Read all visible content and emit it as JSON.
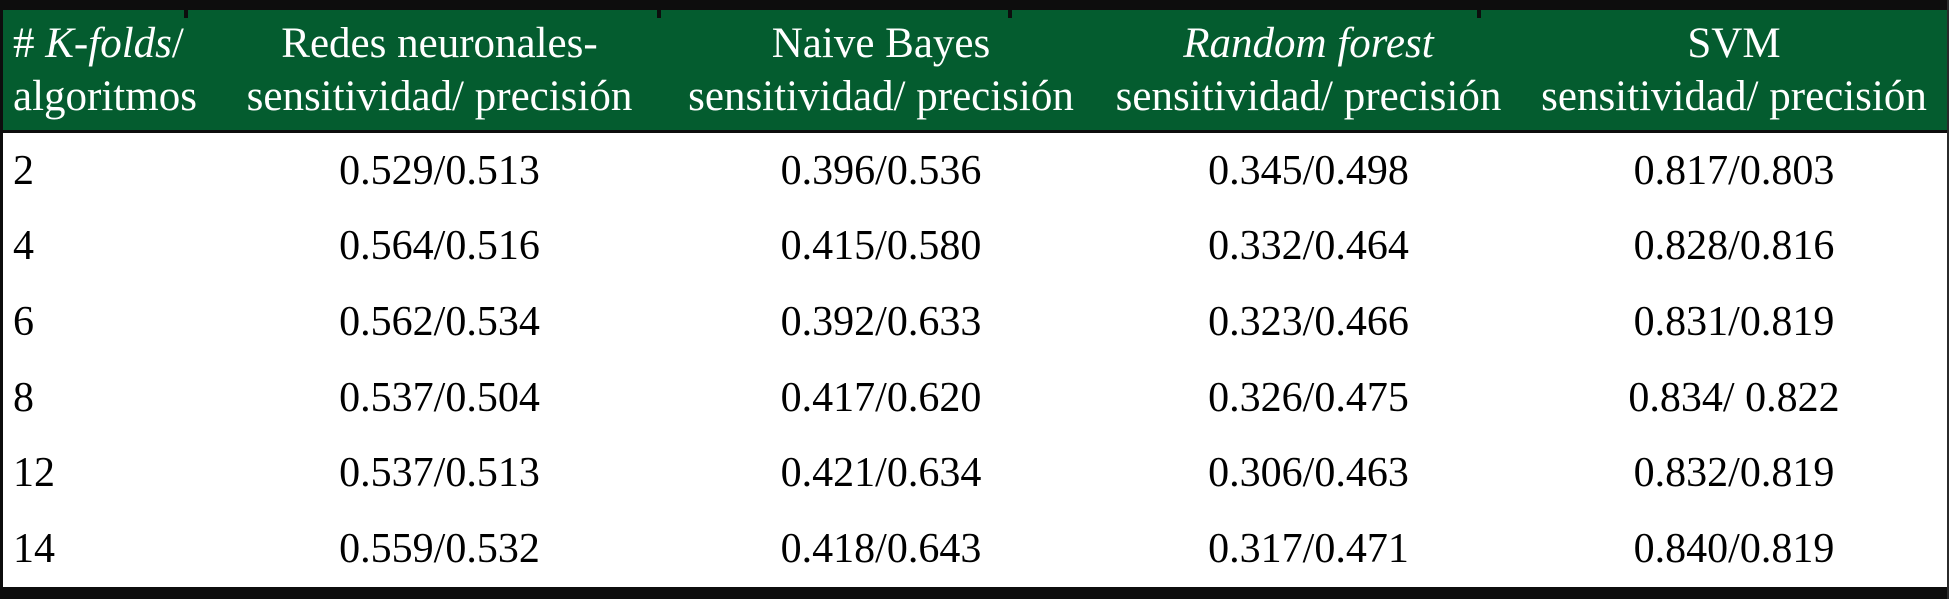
{
  "table": {
    "header": {
      "kfolds": {
        "prefix": "# ",
        "italic": "K-folds",
        "suffix": "/",
        "line2": "algoritmos"
      },
      "redes": {
        "line1": "Redes neuronales-",
        "line2": "sensitividad/ precisión"
      },
      "naive": {
        "line1": "Naive Bayes",
        "line2": "sensitividad/ precisión"
      },
      "random": {
        "line1": "Random forest",
        "line2": "sensitividad/ precisión"
      },
      "svm": {
        "line1": "SVM",
        "line2": "sensitividad/ precisión"
      }
    },
    "rows": [
      {
        "k": "2",
        "redes": "0.529/0.513",
        "naive": "0.396/0.536",
        "random": "0.345/0.498",
        "svm": "0.817/0.803"
      },
      {
        "k": "4",
        "redes": "0.564/0.516",
        "naive": "0.415/0.580",
        "random": "0.332/0.464",
        "svm": "0.828/0.816"
      },
      {
        "k": "6",
        "redes": "0.562/0.534",
        "naive": "0.392/0.633",
        "random": "0.323/0.466",
        "svm": "0.831/0.819"
      },
      {
        "k": "8",
        "redes": "0.537/0.504",
        "naive": "0.417/0.620",
        "random": "0.326/0.475",
        "svm": "0.834/ 0.822"
      },
      {
        "k": "12",
        "redes": "0.537/0.513",
        "naive": "0.421/0.634",
        "random": "0.306/0.463",
        "svm": "0.832/0.819"
      },
      {
        "k": "14",
        "redes": "0.559/0.532",
        "naive": "0.418/0.643",
        "random": "0.317/0.471",
        "svm": "0.840/0.819"
      }
    ]
  },
  "colors": {
    "header_green": "#045c2f",
    "border_black": "#0d0d0d",
    "header_text": "#ffffff",
    "body_text": "#000000"
  }
}
